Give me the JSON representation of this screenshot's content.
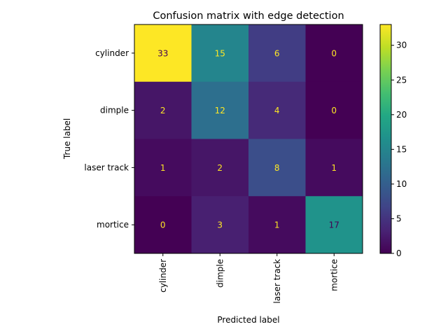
{
  "chart_data": {
    "type": "heatmap",
    "title": "Confusion matrix with edge detection",
    "xlabel": "Predicted label",
    "ylabel": "True label",
    "x_categories": [
      "cylinder",
      "dimple",
      "laser track",
      "mortice"
    ],
    "y_categories": [
      "cylinder",
      "dimple",
      "laser track",
      "mortice"
    ],
    "values": [
      [
        33,
        15,
        6,
        0
      ],
      [
        2,
        12,
        4,
        0
      ],
      [
        1,
        2,
        8,
        1
      ],
      [
        0,
        3,
        1,
        17
      ]
    ],
    "colormap": "viridis",
    "vmin": 0,
    "vmax": 33,
    "colorbar_ticks": [
      "0",
      "5",
      "10",
      "15",
      "20",
      "25",
      "30"
    ],
    "text_color_low": "#fde725",
    "text_color_high": "#440154"
  }
}
